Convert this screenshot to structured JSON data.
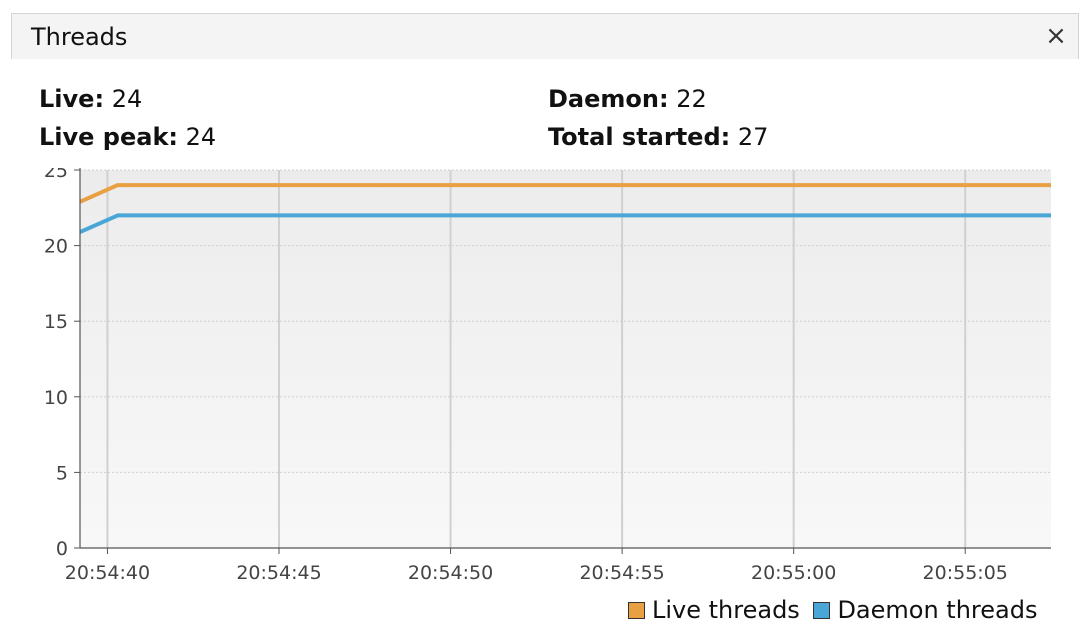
{
  "panel": {
    "title": "Threads",
    "close_glyph": "×"
  },
  "stats": {
    "live": {
      "label": "Live:",
      "value": "24"
    },
    "live_peak": {
      "label": "Live peak:",
      "value": "24"
    },
    "daemon": {
      "label": "Daemon:",
      "value": "22"
    },
    "total_started": {
      "label": "Total started:",
      "value": "27"
    }
  },
  "colors": {
    "live_threads": "#e8a043",
    "daemon_threads": "#4aa6d6",
    "plot_bg_top": "#ececec",
    "plot_bg_bottom": "#f8f8f8",
    "grid": "#d0d0d0"
  },
  "chart_data": {
    "type": "line",
    "x_axis": {
      "min": "20:54:39.2",
      "max": "20:55:07.5",
      "ticks": [
        "20:54:40",
        "20:54:45",
        "20:54:50",
        "20:54:55",
        "20:55:00",
        "20:55:05"
      ]
    },
    "y_axis": {
      "min": 0,
      "max": 25,
      "ticks": [
        "0",
        "5",
        "10",
        "15",
        "20",
        "25"
      ]
    },
    "grid": true,
    "legend_position": "bottom-right",
    "series": [
      {
        "name": "Live threads",
        "color": "#e8a043",
        "points": [
          [
            "20:54:39.2",
            22.9
          ],
          [
            "20:54:40.3",
            24
          ],
          [
            "20:55:07.5",
            24
          ]
        ]
      },
      {
        "name": "Daemon threads",
        "color": "#4aa6d6",
        "points": [
          [
            "20:54:39.2",
            20.9
          ],
          [
            "20:54:40.3",
            22
          ],
          [
            "20:55:07.5",
            22
          ]
        ]
      }
    ]
  }
}
